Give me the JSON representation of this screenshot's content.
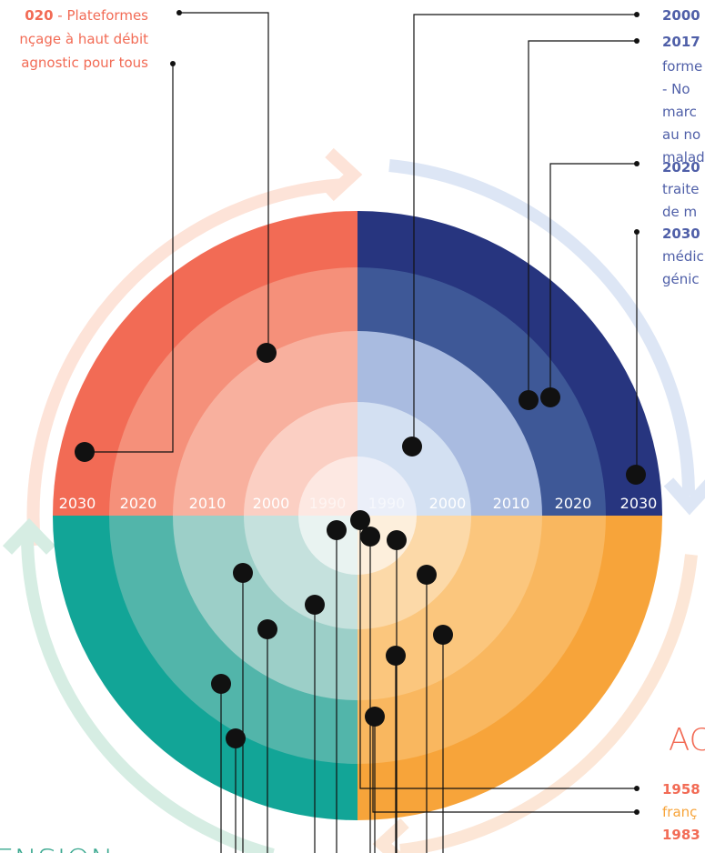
{
  "left_note": {
    "year": "020",
    "lines": [
      " - Plateformes",
      "nçage à haut débit",
      "agnostic pour tous"
    ]
  },
  "right_notes": [
    {
      "bold": true,
      "text": "2000"
    },
    {
      "bold": true,
      "text": "2017"
    },
    {
      "bold": false,
      "text": "forme"
    },
    {
      "bold": false,
      "text": "- No"
    },
    {
      "bold": false,
      "text": "marc"
    },
    {
      "bold": false,
      "text": "au no"
    },
    {
      "bold": false,
      "text": "malad"
    },
    {
      "bold": true,
      "text": "2020"
    },
    {
      "bold": false,
      "text": "traite"
    },
    {
      "bold": false,
      "text": "de m"
    },
    {
      "bold": true,
      "text": "2030"
    },
    {
      "bold": false,
      "text": "médic"
    },
    {
      "bold": false,
      "text": "génic"
    }
  ],
  "ring_labels": [
    "2030",
    "2020",
    "2010",
    "2000",
    "1990",
    "1990",
    "2000",
    "2010",
    "2020",
    "2030"
  ],
  "bottom_right": {
    "heading": "AC",
    "notes": [
      {
        "bold": true,
        "text": "1958"
      },
      {
        "bold": false,
        "text": "franç"
      },
      {
        "bold": true,
        "text": "1983"
      }
    ]
  },
  "bottom_left": {
    "heading": "ENSION"
  }
}
